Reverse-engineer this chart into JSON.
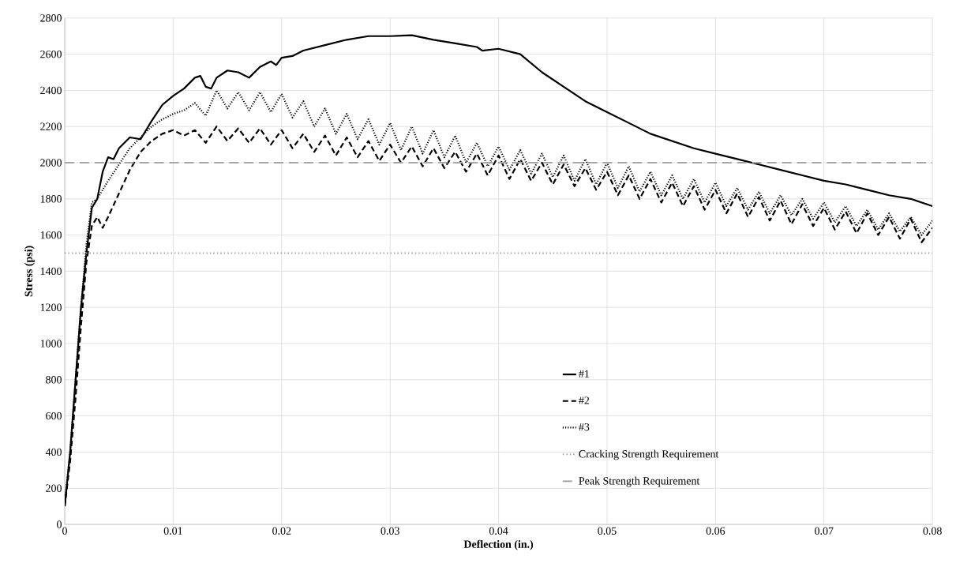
{
  "chart_data": {
    "type": "line",
    "xlabel": "Deflection (in.)",
    "ylabel": "Stress (psi)",
    "xlim": [
      0,
      0.08
    ],
    "xticks": [
      0,
      0.01,
      0.02,
      0.03,
      0.04,
      0.05,
      0.06,
      0.07,
      0.08
    ],
    "ylim": [
      0,
      2800
    ],
    "yticks": [
      0,
      200,
      400,
      600,
      800,
      1000,
      1200,
      1400,
      1600,
      1800,
      2000,
      2200,
      2400,
      2600,
      2800
    ],
    "grid": true,
    "legend": "right",
    "marker": "none",
    "series": [
      {
        "name": "#1",
        "color": "#000000",
        "line_style": "solid",
        "x": [
          0,
          0.0005,
          0.001,
          0.0015,
          0.002,
          0.0025,
          0.003,
          0.0035,
          0.004,
          0.0045,
          0.005,
          0.006,
          0.007,
          0.008,
          0.009,
          0.01,
          0.011,
          0.012,
          0.0125,
          0.013,
          0.0135,
          0.014,
          0.015,
          0.016,
          0.017,
          0.018,
          0.019,
          0.0195,
          0.02,
          0.021,
          0.022,
          0.024,
          0.026,
          0.028,
          0.03,
          0.032,
          0.034,
          0.036,
          0.038,
          0.0385,
          0.04,
          0.042,
          0.044,
          0.046,
          0.048,
          0.05,
          0.052,
          0.054,
          0.056,
          0.058,
          0.06,
          0.062,
          0.064,
          0.066,
          0.068,
          0.07,
          0.072,
          0.074,
          0.076,
          0.078,
          0.08
        ],
        "values": [
          100,
          400,
          800,
          1200,
          1500,
          1750,
          1800,
          1950,
          2030,
          2020,
          2080,
          2140,
          2130,
          2230,
          2320,
          2370,
          2410,
          2470,
          2480,
          2420,
          2410,
          2470,
          2510,
          2500,
          2470,
          2530,
          2560,
          2540,
          2580,
          2590,
          2620,
          2650,
          2680,
          2700,
          2700,
          2705,
          2680,
          2660,
          2640,
          2620,
          2630,
          2600,
          2500,
          2420,
          2340,
          2280,
          2220,
          2160,
          2120,
          2080,
          2050,
          2020,
          1990,
          1960,
          1930,
          1900,
          1880,
          1850,
          1820,
          1800,
          1760
        ]
      },
      {
        "name": "#2",
        "color": "#000000",
        "line_style": "dashed",
        "x": [
          0,
          0.0005,
          0.001,
          0.0015,
          0.002,
          0.0025,
          0.003,
          0.0035,
          0.004,
          0.005,
          0.006,
          0.007,
          0.008,
          0.009,
          0.01,
          0.011,
          0.012,
          0.013,
          0.014,
          0.015,
          0.016,
          0.017,
          0.018,
          0.019,
          0.02,
          0.021,
          0.022,
          0.023,
          0.024,
          0.025,
          0.026,
          0.027,
          0.028,
          0.029,
          0.03,
          0.031,
          0.032,
          0.033,
          0.034,
          0.035,
          0.036,
          0.037,
          0.038,
          0.039,
          0.04,
          0.041,
          0.042,
          0.043,
          0.044,
          0.045,
          0.046,
          0.047,
          0.048,
          0.049,
          0.05,
          0.051,
          0.052,
          0.053,
          0.054,
          0.055,
          0.056,
          0.057,
          0.058,
          0.059,
          0.06,
          0.061,
          0.062,
          0.063,
          0.064,
          0.065,
          0.066,
          0.067,
          0.068,
          0.069,
          0.07,
          0.071,
          0.072,
          0.073,
          0.074,
          0.075,
          0.076,
          0.077,
          0.078,
          0.079,
          0.08
        ],
        "values": [
          100,
          350,
          700,
          1100,
          1450,
          1650,
          1700,
          1640,
          1700,
          1830,
          1960,
          2060,
          2120,
          2160,
          2180,
          2150,
          2180,
          2110,
          2200,
          2120,
          2190,
          2110,
          2190,
          2100,
          2180,
          2080,
          2160,
          2060,
          2150,
          2040,
          2140,
          2030,
          2120,
          2010,
          2100,
          2000,
          2090,
          1980,
          2080,
          1970,
          2060,
          1950,
          2050,
          1930,
          2040,
          1910,
          2020,
          1900,
          2000,
          1880,
          1990,
          1870,
          1970,
          1850,
          1950,
          1820,
          1930,
          1800,
          1910,
          1780,
          1890,
          1760,
          1870,
          1740,
          1850,
          1720,
          1830,
          1700,
          1810,
          1680,
          1790,
          1660,
          1770,
          1650,
          1750,
          1630,
          1730,
          1610,
          1720,
          1600,
          1700,
          1580,
          1690,
          1560,
          1640
        ]
      },
      {
        "name": "#3",
        "color": "#000000",
        "line_style": "dotted",
        "x": [
          0,
          0.0005,
          0.001,
          0.0015,
          0.002,
          0.0025,
          0.003,
          0.0035,
          0.004,
          0.005,
          0.006,
          0.007,
          0.008,
          0.009,
          0.01,
          0.011,
          0.012,
          0.013,
          0.014,
          0.015,
          0.016,
          0.017,
          0.018,
          0.019,
          0.02,
          0.021,
          0.022,
          0.023,
          0.024,
          0.025,
          0.026,
          0.027,
          0.028,
          0.029,
          0.03,
          0.031,
          0.032,
          0.033,
          0.034,
          0.035,
          0.036,
          0.037,
          0.038,
          0.039,
          0.04,
          0.041,
          0.042,
          0.043,
          0.044,
          0.045,
          0.046,
          0.047,
          0.048,
          0.049,
          0.05,
          0.051,
          0.052,
          0.053,
          0.054,
          0.055,
          0.056,
          0.057,
          0.058,
          0.059,
          0.06,
          0.061,
          0.062,
          0.063,
          0.064,
          0.065,
          0.066,
          0.067,
          0.068,
          0.069,
          0.07,
          0.071,
          0.072,
          0.073,
          0.074,
          0.075,
          0.076,
          0.077,
          0.078,
          0.079,
          0.08
        ],
        "values": [
          120,
          400,
          800,
          1200,
          1550,
          1780,
          1800,
          1850,
          1900,
          1990,
          2080,
          2140,
          2200,
          2240,
          2270,
          2290,
          2330,
          2260,
          2400,
          2300,
          2390,
          2290,
          2390,
          2280,
          2380,
          2250,
          2340,
          2200,
          2300,
          2160,
          2270,
          2130,
          2240,
          2100,
          2220,
          2070,
          2200,
          2050,
          2180,
          2030,
          2150,
          2000,
          2110,
          1980,
          2090,
          1960,
          2070,
          1940,
          2050,
          1920,
          2040,
          1900,
          2020,
          1880,
          2000,
          1860,
          1980,
          1840,
          1950,
          1820,
          1930,
          1800,
          1910,
          1780,
          1890,
          1760,
          1860,
          1740,
          1840,
          1720,
          1820,
          1710,
          1800,
          1690,
          1780,
          1670,
          1760,
          1650,
          1740,
          1630,
          1720,
          1620,
          1700,
          1600,
          1680
        ]
      }
    ],
    "ref_lines": [
      {
        "axis": "y",
        "value": 1500,
        "label": "Cracking Strength Requirement",
        "color": "#a6a6a6",
        "line_style": "dotted"
      },
      {
        "axis": "y",
        "value": 2000,
        "label": "Peak Strength Requirement",
        "color": "#a6a6a6",
        "line_style": "dashed"
      }
    ]
  }
}
